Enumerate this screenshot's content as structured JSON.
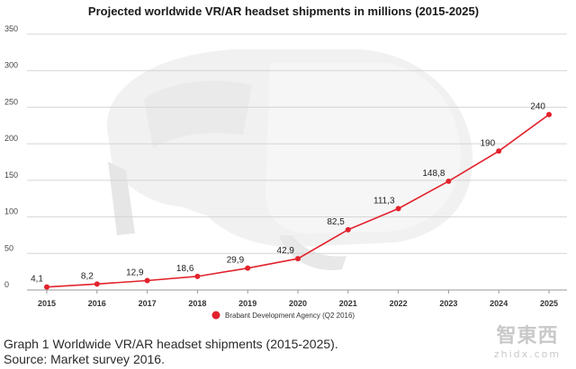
{
  "chart_data": {
    "type": "line",
    "title": "Projected worldwide VR/AR headset shipments in millions (2015-2025)",
    "categories": [
      "2015",
      "2016",
      "2017",
      "2018",
      "2019",
      "2020",
      "2021",
      "2022",
      "2023",
      "2024",
      "2025"
    ],
    "series": [
      {
        "name": "Brabant Development Agency (Q2 2016)",
        "values": [
          4.1,
          8.2,
          12.9,
          18.6,
          29.9,
          42.9,
          82.5,
          111.3,
          148.8,
          190,
          240
        ],
        "labels": [
          "4,1",
          "8,2",
          "12,9",
          "18,6",
          "29,9",
          "42,9",
          "82,5",
          "111,3",
          "148,8",
          "190",
          "240"
        ],
        "color": "#e2222c"
      }
    ],
    "yticks": [
      0,
      50,
      100,
      150,
      200,
      250,
      300,
      350
    ],
    "ylim": [
      0,
      350
    ],
    "xlabel": "",
    "ylabel": "",
    "grid": true,
    "legend_position": "bottom-center"
  },
  "caption": "Graph 1 Worldwide VR/AR headset shipments (2015-2025). Source: Market survey 2016.",
  "watermark": {
    "main": "智東西",
    "sub": "zhidx.com"
  }
}
